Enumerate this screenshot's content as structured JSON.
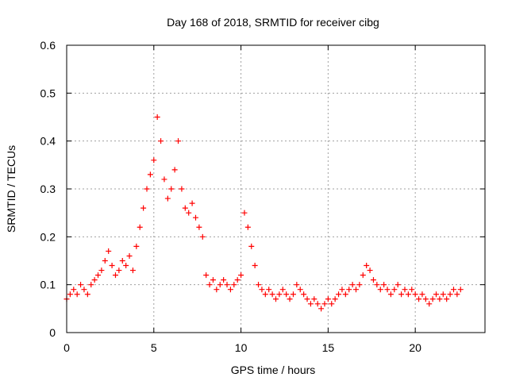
{
  "chart_data": {
    "type": "scatter",
    "title": "Day 168 of 2018, SRMTID for receiver cibg",
    "xlabel": "GPS time / hours",
    "ylabel": "SRMTID / TECUs",
    "xlim": [
      0,
      24
    ],
    "ylim": [
      0,
      0.6
    ],
    "x_ticks": [
      0,
      5,
      10,
      15,
      20
    ],
    "x_tick_labels": [
      "0",
      "5",
      "10",
      "15",
      "20"
    ],
    "y_ticks": [
      0,
      0.1,
      0.2,
      0.3,
      0.4,
      0.5,
      0.6
    ],
    "y_tick_labels": [
      "0",
      "0.1",
      "0.2",
      "0.3",
      "0.4",
      "0.5",
      "0.6"
    ],
    "grid": true,
    "marker": "+",
    "color": "#ff0000",
    "series": [
      {
        "name": "SRMTID",
        "x": [
          0.0,
          0.2,
          0.4,
          0.6,
          0.8,
          1.0,
          1.2,
          1.4,
          1.6,
          1.8,
          2.0,
          2.2,
          2.4,
          2.6,
          2.8,
          3.0,
          3.2,
          3.4,
          3.6,
          3.8,
          4.0,
          4.2,
          4.4,
          4.6,
          4.8,
          5.0,
          5.2,
          5.4,
          5.6,
          5.8,
          6.0,
          6.2,
          6.4,
          6.6,
          6.8,
          7.0,
          7.2,
          7.4,
          7.6,
          7.8,
          8.0,
          8.2,
          8.4,
          8.6,
          8.8,
          9.0,
          9.2,
          9.4,
          9.6,
          9.8,
          10.0,
          10.2,
          10.4,
          10.6,
          10.8,
          11.0,
          11.2,
          11.4,
          11.6,
          11.8,
          12.0,
          12.2,
          12.4,
          12.6,
          12.8,
          13.0,
          13.2,
          13.4,
          13.6,
          13.8,
          14.0,
          14.2,
          14.4,
          14.6,
          14.8,
          15.0,
          15.2,
          15.4,
          15.6,
          15.8,
          16.0,
          16.2,
          16.4,
          16.6,
          16.8,
          17.0,
          17.2,
          17.4,
          17.6,
          17.8,
          18.0,
          18.2,
          18.4,
          18.6,
          18.8,
          19.0,
          19.2,
          19.4,
          19.6,
          19.8,
          20.0,
          20.2,
          20.4,
          20.6,
          20.8,
          21.0,
          21.2,
          21.4,
          21.6,
          21.8,
          22.0,
          22.2,
          22.4,
          22.6
        ],
        "y": [
          0.07,
          0.08,
          0.09,
          0.08,
          0.1,
          0.09,
          0.08,
          0.1,
          0.11,
          0.12,
          0.13,
          0.15,
          0.17,
          0.14,
          0.12,
          0.13,
          0.15,
          0.14,
          0.16,
          0.13,
          0.18,
          0.22,
          0.26,
          0.3,
          0.33,
          0.36,
          0.45,
          0.4,
          0.32,
          0.28,
          0.3,
          0.34,
          0.4,
          0.3,
          0.26,
          0.25,
          0.27,
          0.24,
          0.22,
          0.2,
          0.12,
          0.1,
          0.11,
          0.09,
          0.1,
          0.11,
          0.1,
          0.09,
          0.1,
          0.11,
          0.12,
          0.25,
          0.22,
          0.18,
          0.14,
          0.1,
          0.09,
          0.08,
          0.09,
          0.08,
          0.07,
          0.08,
          0.09,
          0.08,
          0.07,
          0.08,
          0.1,
          0.09,
          0.08,
          0.07,
          0.06,
          0.07,
          0.06,
          0.05,
          0.06,
          0.07,
          0.06,
          0.07,
          0.08,
          0.09,
          0.08,
          0.09,
          0.1,
          0.09,
          0.1,
          0.12,
          0.14,
          0.13,
          0.11,
          0.1,
          0.09,
          0.1,
          0.09,
          0.08,
          0.09,
          0.1,
          0.08,
          0.09,
          0.08,
          0.09,
          0.08,
          0.07,
          0.08,
          0.07,
          0.06,
          0.07,
          0.08,
          0.07,
          0.08,
          0.07,
          0.08,
          0.09,
          0.08,
          0.09
        ]
      }
    ]
  }
}
